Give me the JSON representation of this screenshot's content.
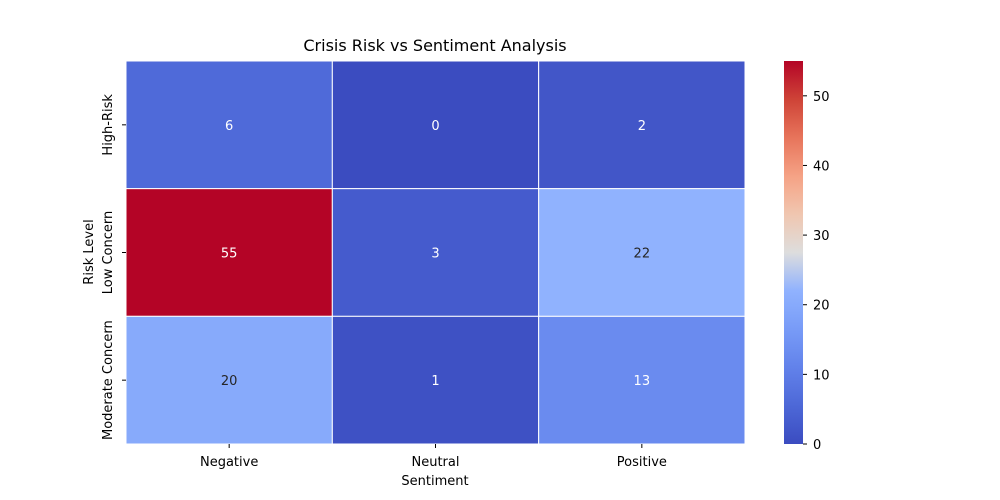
{
  "chart_data": {
    "type": "heatmap",
    "title": "Crisis Risk vs Sentiment Analysis",
    "xlabel": "Sentiment",
    "ylabel": "Risk Level",
    "x_categories": [
      "Negative",
      "Neutral",
      "Positive"
    ],
    "y_categories": [
      "High-Risk",
      "Low Concern",
      "Moderate Concern"
    ],
    "values": [
      [
        6,
        0,
        2
      ],
      [
        55,
        3,
        22
      ],
      [
        20,
        1,
        13
      ]
    ],
    "colormap": "coolwarm",
    "vmin": 0,
    "vmax": 55,
    "colorbar_ticks": [
      0,
      10,
      20,
      30,
      40,
      50
    ],
    "annotations": true,
    "grid": false
  }
}
